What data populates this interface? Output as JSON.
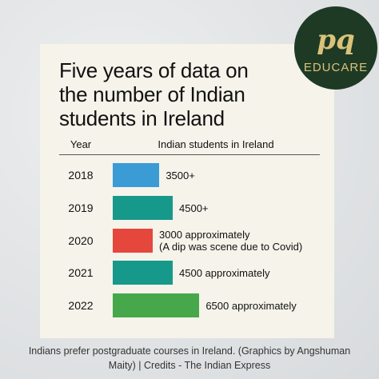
{
  "chart_data": {
    "type": "hbar",
    "title": "Five years of data on the number of Indian students in Ireland",
    "category_header": "Year",
    "value_header": "Indian students in Ireland",
    "categories": [
      "2018",
      "2019",
      "2020",
      "2021",
      "2022"
    ],
    "values": [
      3500,
      4500,
      3000,
      4500,
      6500
    ],
    "value_labels": [
      "3500+",
      "4500+",
      "3000 approximately\n(A dip was scene due to Covid)",
      "4500 approximately",
      "6500 approximately"
    ],
    "colors": [
      "#3a9bd5",
      "#16998a",
      "#e5473d",
      "#16998a",
      "#47a84b"
    ],
    "caption": "Indians prefer postgraduate courses in Ireland. (Graphics by Angshuman Maity) | Credits - The Indian Express"
  },
  "logo": {
    "mark": "pq",
    "text": "EDUCARE"
  }
}
